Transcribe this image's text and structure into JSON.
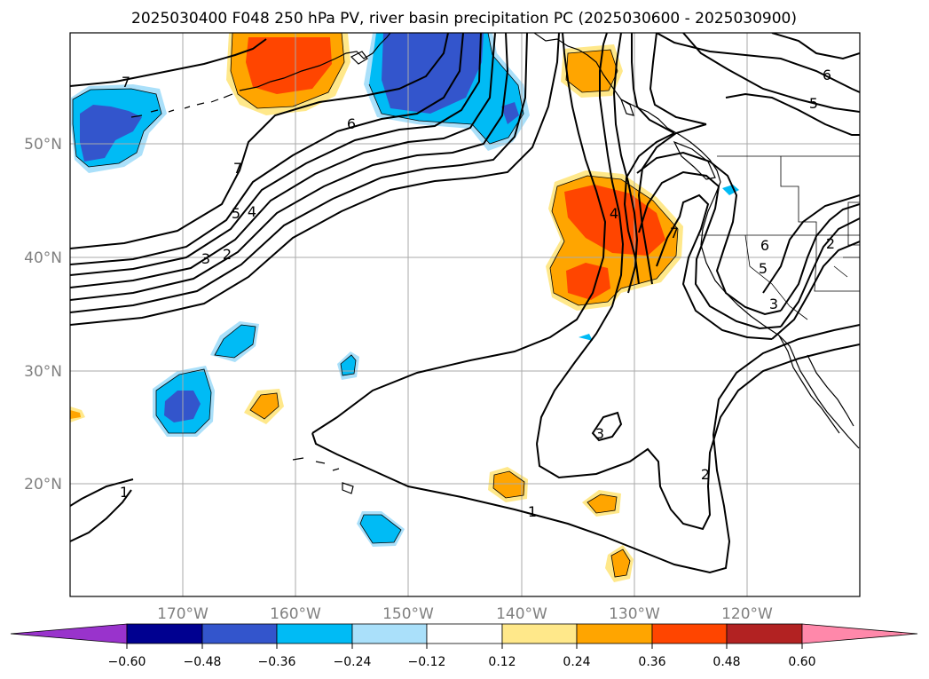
{
  "title": "2025030400 F048 250 hPa PV, river basin precipitation PC (2025030600 - 2025030900)",
  "map": {
    "lon_labels": [
      "170°W",
      "160°W",
      "150°W",
      "140°W",
      "130°W",
      "120°W"
    ],
    "lat_labels": [
      "50°N",
      "40°N",
      "30°N",
      "20°N"
    ],
    "pv_contour_labels": [
      "7",
      "6",
      "5",
      "4",
      "3",
      "2",
      "6",
      "5",
      "7",
      "4",
      "6",
      "5",
      "3",
      "2",
      "3",
      "1",
      "2",
      "1",
      "6",
      "5",
      "7"
    ]
  },
  "colorbar": {
    "tick_labels": [
      "−0.60",
      "−0.48",
      "−0.36",
      "−0.24",
      "−0.12",
      "0.12",
      "0.24",
      "0.36",
      "0.48",
      "0.60"
    ],
    "colors": [
      "#9933cc",
      "#000090",
      "#3355cc",
      "#00bbf5",
      "#aae0fa",
      "#ffffff",
      "#ffe88a",
      "#ffa500",
      "#ff4500",
      "#b22222",
      "#ff88aa"
    ]
  },
  "colors": {
    "contour": "#000000",
    "coast": "#000000",
    "grid": "#aaaaaa"
  }
}
